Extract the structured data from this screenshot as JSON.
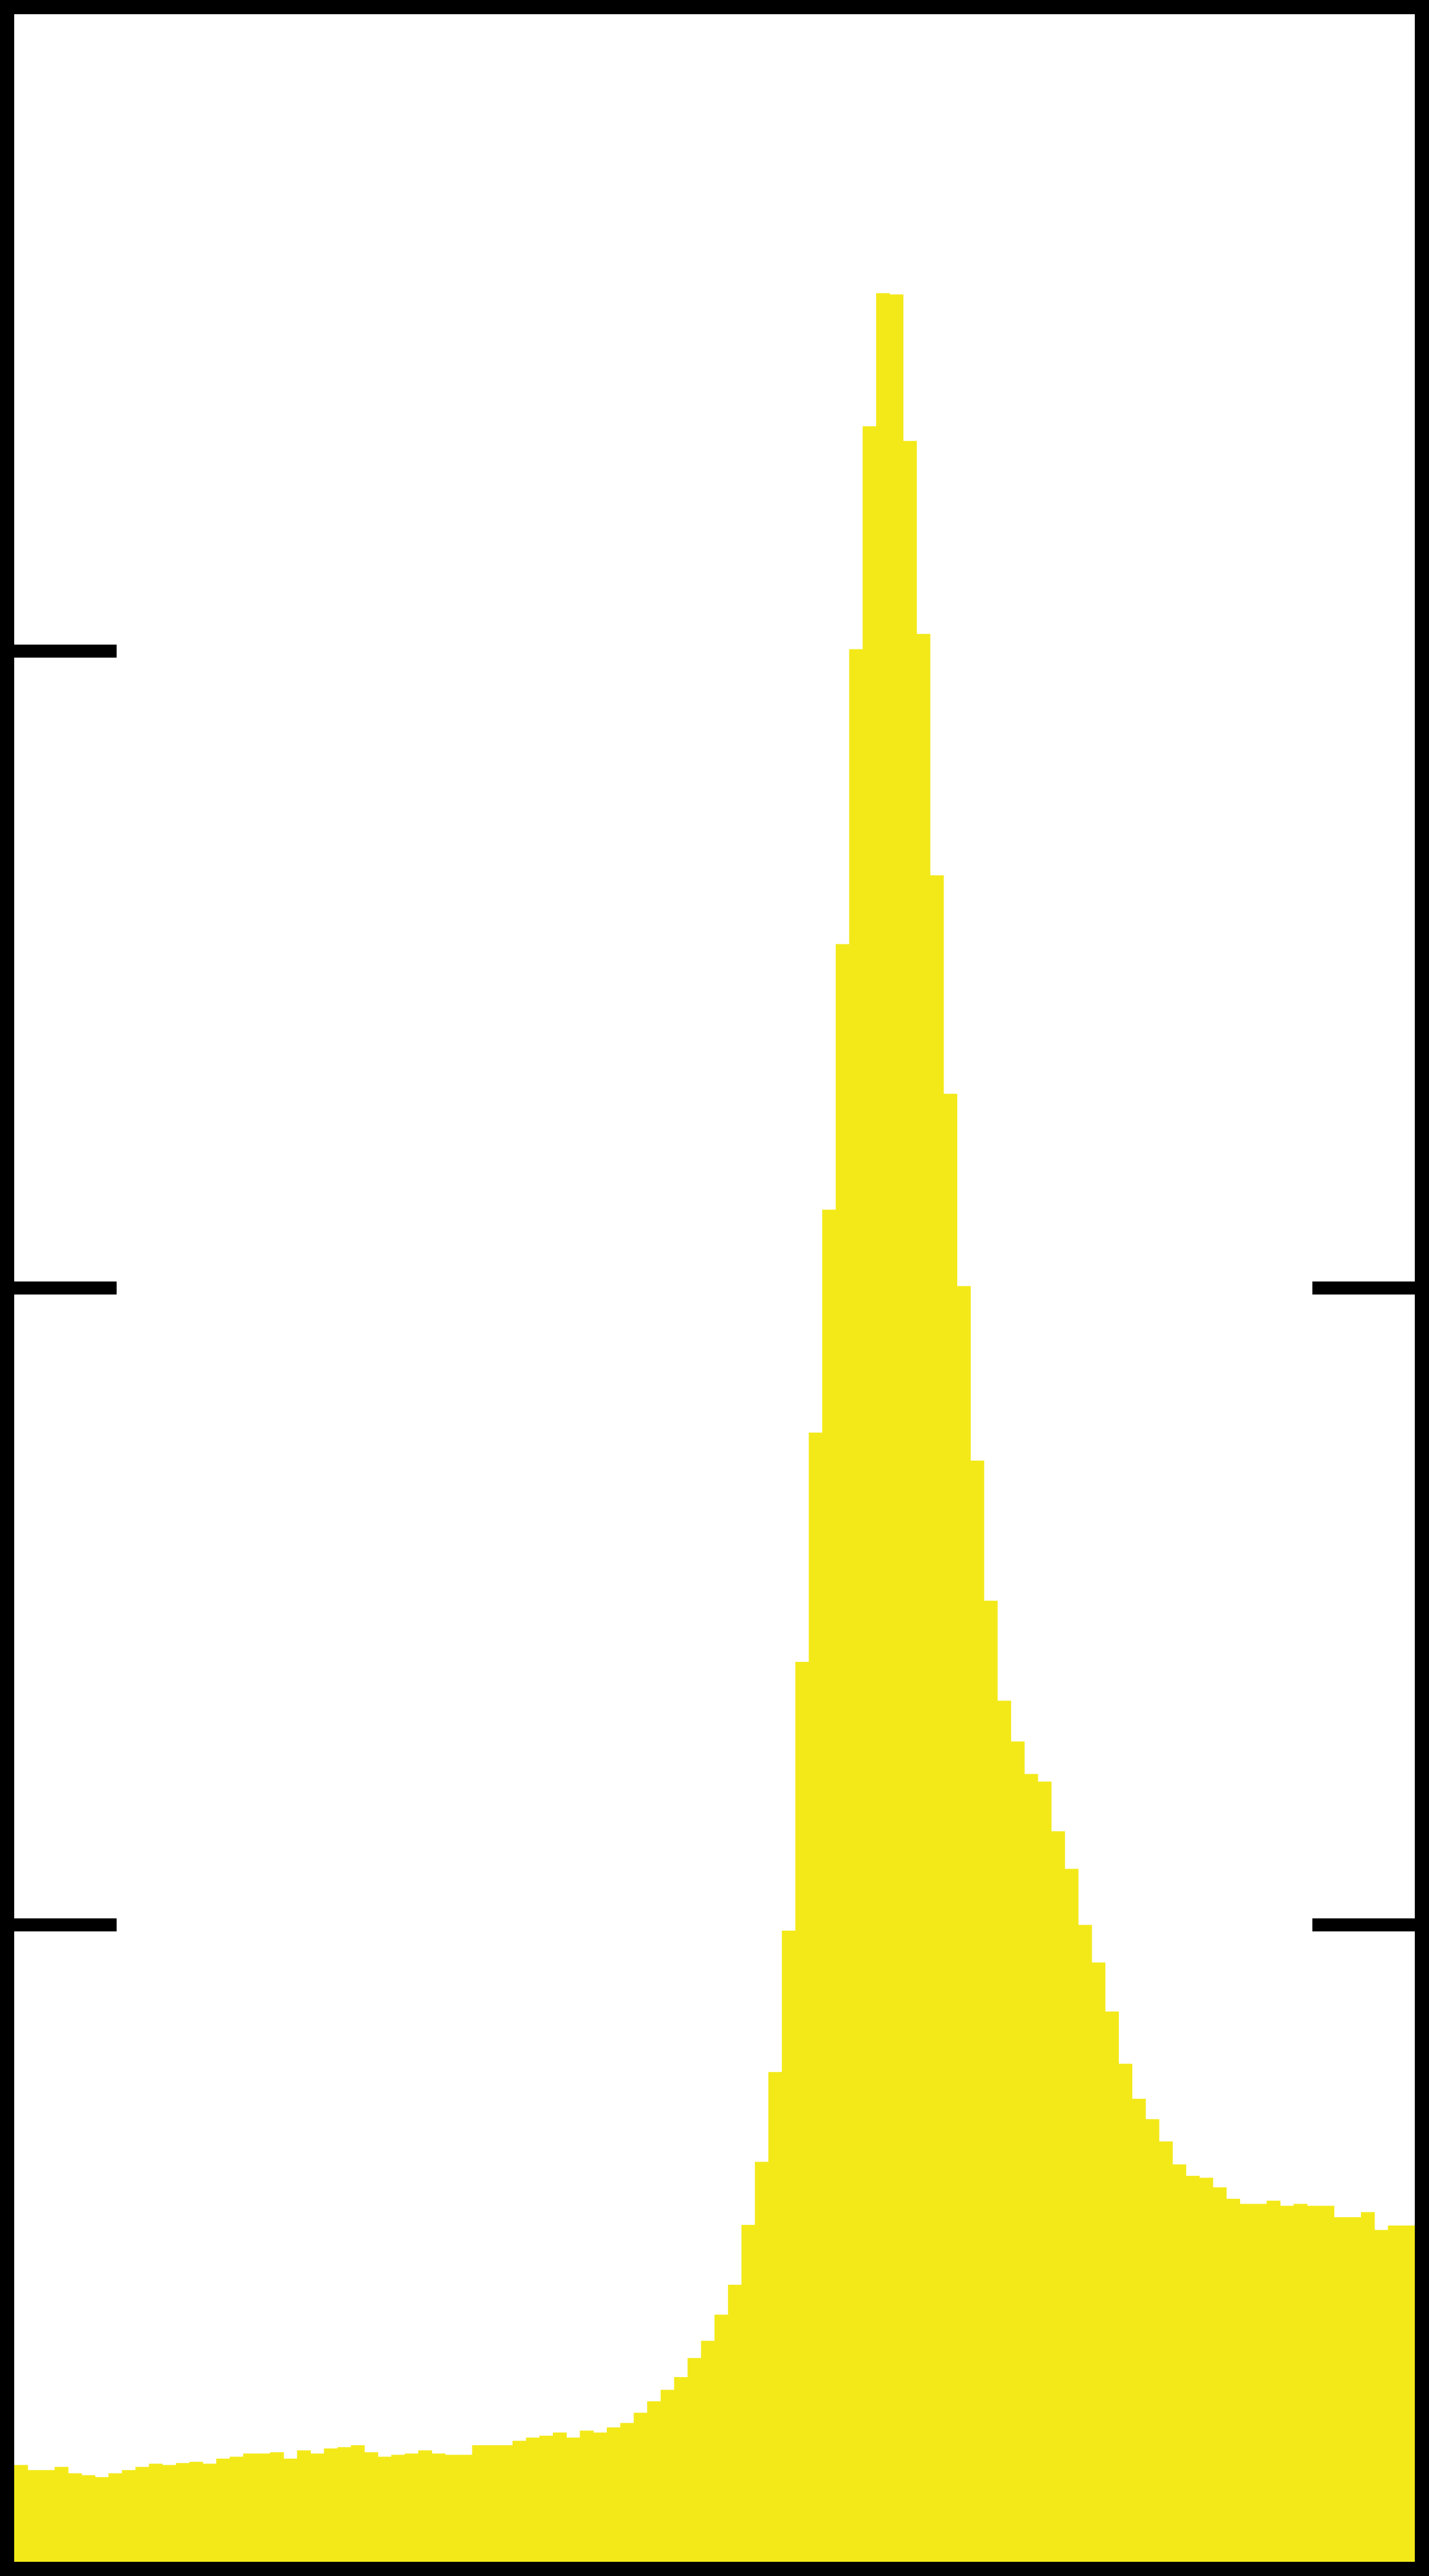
{
  "chart_data": {
    "type": "bar",
    "title": "",
    "xlabel": "",
    "ylabel": "",
    "ylim": [
      0,
      4
    ],
    "yticks": [
      1,
      2,
      3
    ],
    "grid": false,
    "bar_color": "#f3e919",
    "frame_color": "#000000",
    "background_color": "#ffffff",
    "values": [
      0.152,
      0.144,
      0.144,
      0.149,
      0.139,
      0.136,
      0.133,
      0.139,
      0.144,
      0.149,
      0.154,
      0.152,
      0.155,
      0.157,
      0.154,
      0.162,
      0.165,
      0.17,
      0.17,
      0.172,
      0.162,
      0.175,
      0.17,
      0.178,
      0.18,
      0.183,
      0.172,
      0.165,
      0.168,
      0.17,
      0.175,
      0.17,
      0.168,
      0.168,
      0.183,
      0.183,
      0.183,
      0.19,
      0.195,
      0.198,
      0.203,
      0.195,
      0.206,
      0.203,
      0.211,
      0.218,
      0.234,
      0.252,
      0.27,
      0.29,
      0.32,
      0.347,
      0.388,
      0.435,
      0.529,
      0.628,
      0.769,
      0.991,
      1.413,
      1.773,
      2.123,
      2.54,
      3.003,
      3.353,
      3.562,
      3.56,
      3.33,
      3.027,
      2.648,
      2.305,
      2.003,
      1.729,
      1.509,
      1.352,
      1.288,
      1.237,
      1.225,
      1.147,
      1.088,
      1.0,
      0.941,
      0.864,
      0.782,
      0.727,
      0.695,
      0.66,
      0.624,
      0.606,
      0.603,
      0.588,
      0.57,
      0.562,
      0.562,
      0.567,
      0.559,
      0.562,
      0.559,
      0.559,
      0.541,
      0.541,
      0.549,
      0.521,
      0.528,
      0.528
    ]
  }
}
